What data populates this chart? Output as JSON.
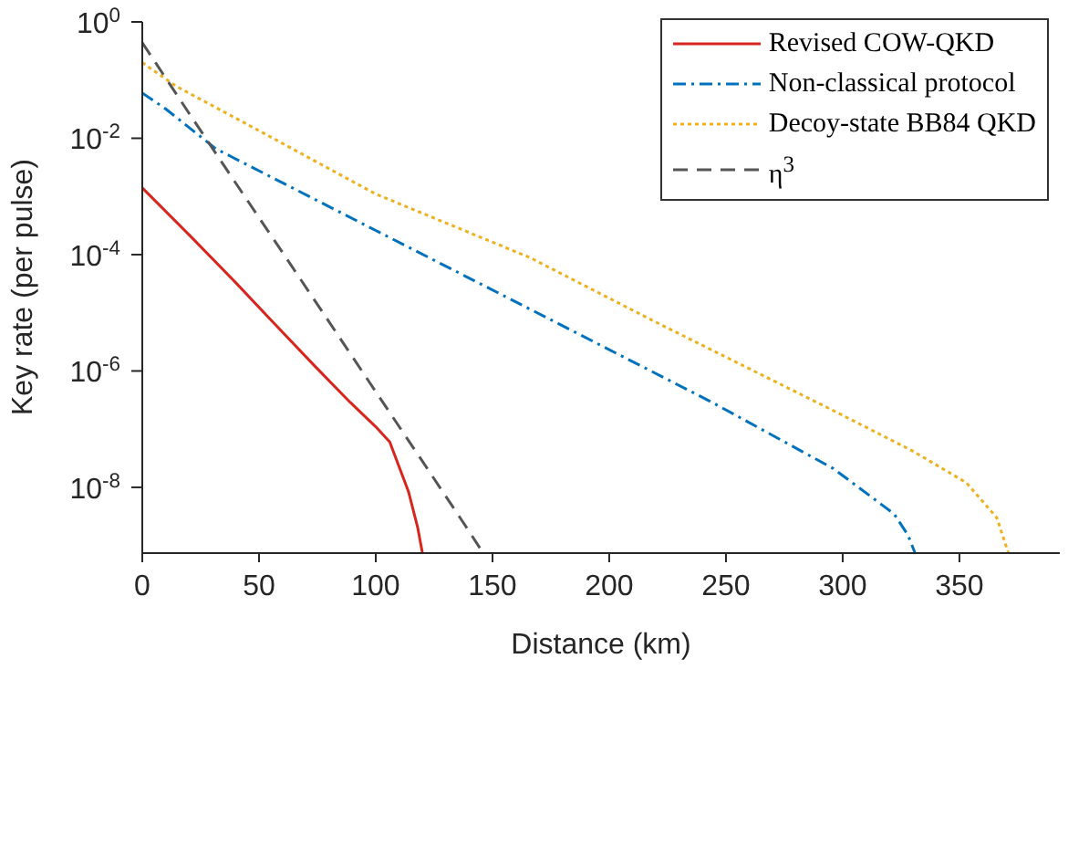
{
  "chart_data": {
    "type": "line",
    "xlabel": "Distance (km)",
    "ylabel": "Key rate (per pulse)",
    "log": "y",
    "xlim": [
      0,
      393
    ],
    "xticks": [
      0,
      50,
      100,
      150,
      200,
      250,
      300,
      350
    ],
    "ylim": [
      7.4e-10,
      1
    ],
    "yticks": [
      {
        "value": 1,
        "label": "10$^{0}$"
      },
      {
        "value": 0.01,
        "label": "10$^{-2}$"
      },
      {
        "value": 0.0001,
        "label": "10$^{-4}$"
      },
      {
        "value": 1e-06,
        "label": "10$^{-6}$"
      },
      {
        "value": 1e-08,
        "label": "10$^{-8}$"
      }
    ],
    "legend": "top right",
    "marker": "none",
    "series": [
      {
        "name": "Revised COW-QKD",
        "color": "#d7261e",
        "line_style": "solid",
        "x": [
          0,
          20,
          40,
          56,
          74,
          89,
          100,
          106,
          114,
          118,
          120
        ],
        "values": [
          0.0014,
          0.00022,
          3.3e-05,
          6.9e-06,
          1.2e-06,
          2.9e-07,
          1.1e-07,
          6e-08,
          8.5e-09,
          2e-09,
          7.4e-10
        ]
      },
      {
        "name": "Non-classical protocol",
        "color": "#0072bd",
        "line_style": "dashdot",
        "x": [
          0,
          10,
          31.5,
          100,
          177,
          244,
          296,
          322,
          328,
          331
        ],
        "values": [
          0.06,
          0.032,
          0.0066,
          0.00026,
          6.9e-06,
          2.9e-07,
          2.1e-08,
          3.5e-09,
          1.5e-09,
          7.4e-10
        ]
      },
      {
        "name": "Decoy-state BB84 QKD",
        "color": "#edb120",
        "line_style": "dotted",
        "x": [
          0,
          14.6,
          50,
          100,
          166,
          220,
          298,
          330,
          353,
          366,
          371
        ],
        "values": [
          0.2,
          0.078,
          0.0135,
          0.0011,
          8.9e-05,
          6.9e-06,
          1.9e-07,
          4.2e-08,
          1.2e-08,
          3e-09,
          7.4e-10
        ]
      },
      {
        "name": "η$^{3}$",
        "color": "#555555",
        "line_style": "dashed",
        "x": [
          0,
          20,
          40,
          60,
          80,
          100,
          120,
          140,
          146
        ],
        "values": [
          0.44,
          0.027,
          0.0017,
          0.00011,
          7e-06,
          4.4e-07,
          2.8e-08,
          1.75e-09,
          7.4e-10
        ]
      }
    ]
  }
}
